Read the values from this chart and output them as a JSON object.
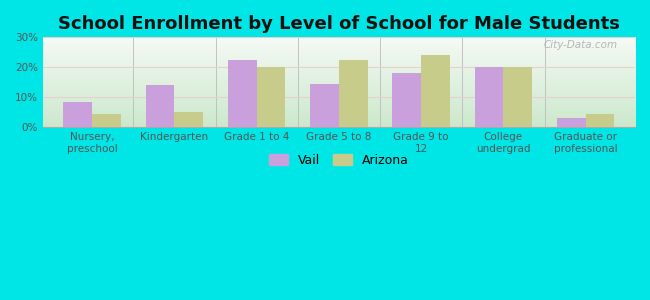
{
  "title": "School Enrollment by Level of School for Male Students",
  "categories": [
    "Nursery,\npreschool",
    "Kindergarten",
    "Grade 1 to 4",
    "Grade 5 to 8",
    "Grade 9 to\n12",
    "College\nundergrad",
    "Graduate or\nprofessional"
  ],
  "vail_values": [
    8.5,
    14.0,
    22.5,
    14.5,
    18.0,
    20.0,
    3.0
  ],
  "arizona_values": [
    4.5,
    5.0,
    20.0,
    22.5,
    24.0,
    20.0,
    4.5
  ],
  "vail_color": "#c9a0dc",
  "arizona_color": "#c8cc8a",
  "background_color": "#00e5e5",
  "ylim": [
    0,
    30
  ],
  "yticks": [
    0,
    10,
    20,
    30
  ],
  "ytick_labels": [
    "0%",
    "10%",
    "20%",
    "30%"
  ],
  "bar_width": 0.35,
  "title_fontsize": 13,
  "tick_fontsize": 7.5,
  "legend_fontsize": 9,
  "watermark": "City-Data.com"
}
